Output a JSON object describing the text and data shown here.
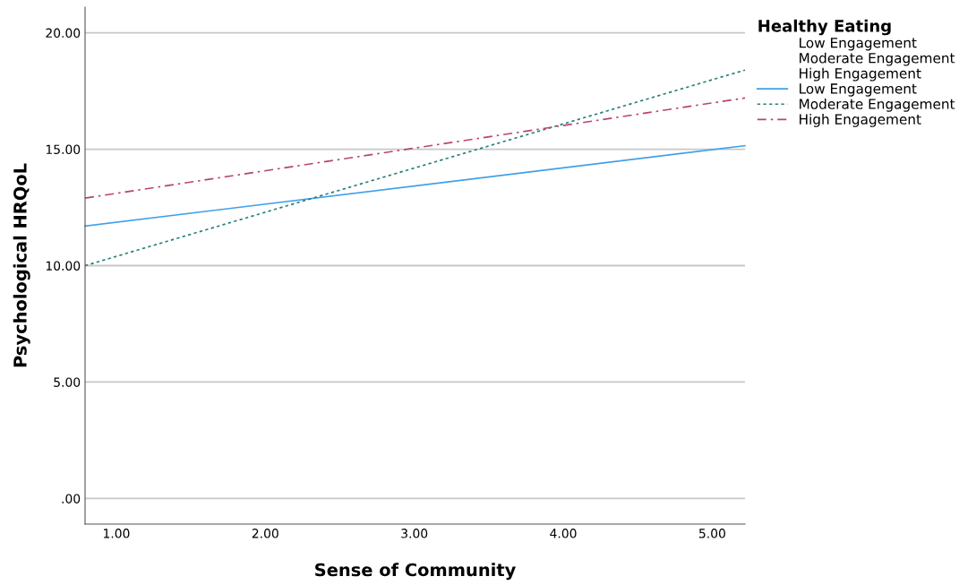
{
  "chart_data": {
    "type": "line",
    "xlabel": "Sense of Community",
    "ylabel": "Psychological HRQoL",
    "legend_title": "Healthy Eating",
    "annotations": [
      "Low Engagement",
      "Moderate Engagement",
      "High Engagement"
    ],
    "x": [
      0.79,
      5.22
    ],
    "series": [
      {
        "name": "Low Engagement",
        "color": "#3fa0e8",
        "line_style": "solid",
        "values": [
          11.7,
          15.15
        ]
      },
      {
        "name": "Moderate Engagement",
        "color": "#2a7f7a",
        "line_style": "dotted",
        "values": [
          10.0,
          18.4
        ]
      },
      {
        "name": "High Engagement",
        "color": "#b8456f",
        "line_style": "dashed",
        "values": [
          12.9,
          17.2
        ]
      }
    ],
    "xlim": [
      0.79,
      5.22
    ],
    "xticks": [
      {
        "value": 1,
        "label": "1.00"
      },
      {
        "value": 2,
        "label": "2.00"
      },
      {
        "value": 3,
        "label": "3.00"
      },
      {
        "value": 4,
        "label": "4.00"
      },
      {
        "value": 5,
        "label": "5.00"
      }
    ],
    "ylim": [
      -1.1,
      21.1
    ],
    "yticks": [
      {
        "value": 0,
        "label": ".00"
      },
      {
        "value": 5,
        "label": "5.00"
      },
      {
        "value": 10,
        "label": "10.00"
      },
      {
        "value": 15,
        "label": "15.00"
      },
      {
        "value": 20,
        "label": "20.00"
      }
    ],
    "grid": "y",
    "legend": "top right",
    "marker": "none"
  }
}
